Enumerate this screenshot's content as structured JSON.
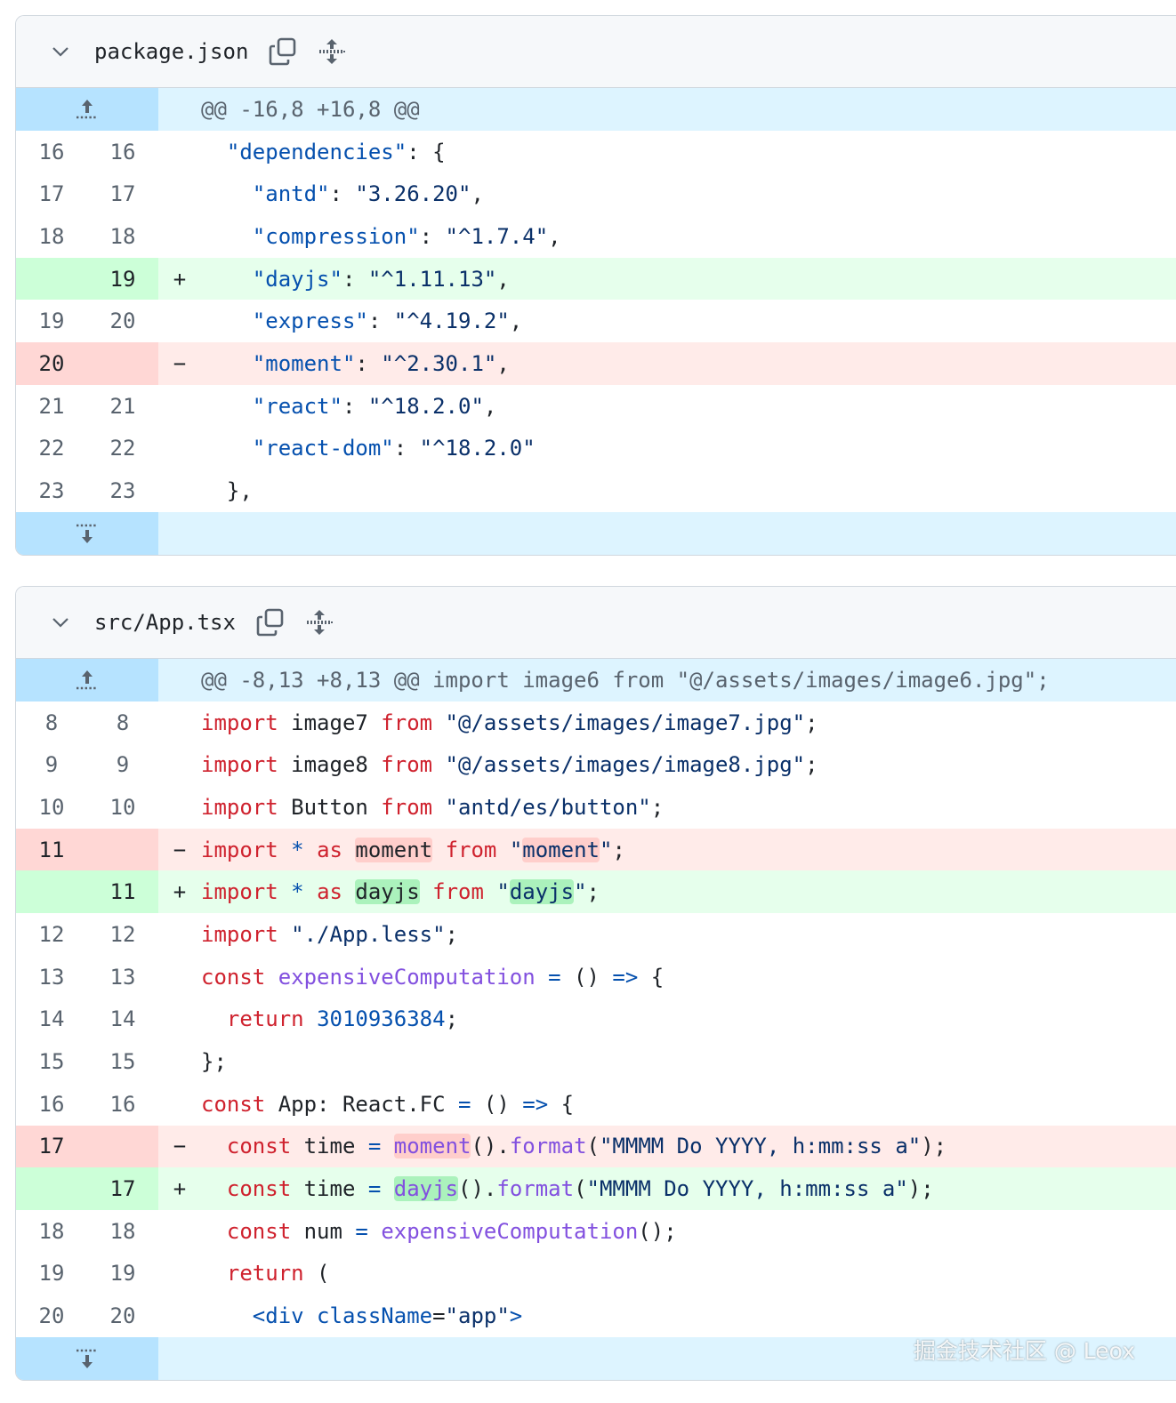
{
  "colors": {
    "added_bg": "#e6ffec",
    "deleted_bg": "#ffebe9",
    "hunk_bg": "#ddf4ff",
    "keyword": "#cf222e",
    "string": "#0a3069",
    "function": "#8250df",
    "constant": "#0550ae"
  },
  "files": [
    {
      "name": "package.json",
      "icons": [
        "chevron-down-icon",
        "copy-icon",
        "expand-all-icon"
      ],
      "hunk": "@@ -16,8 +16,8 @@",
      "lines": [
        {
          "o": "16",
          "n": "16",
          "t": "ctx",
          "m": "",
          "tk": [
            [
              "p",
              "  "
            ],
            [
              "c",
              "\"dependencies\""
            ],
            [
              "p",
              ": {"
            ]
          ]
        },
        {
          "o": "17",
          "n": "17",
          "t": "ctx",
          "m": "",
          "tk": [
            [
              "p",
              "    "
            ],
            [
              "c",
              "\"antd\""
            ],
            [
              "p",
              ": "
            ],
            [
              "s",
              "\"3.26.20\""
            ],
            [
              "p",
              ","
            ]
          ]
        },
        {
          "o": "18",
          "n": "18",
          "t": "ctx",
          "m": "",
          "tk": [
            [
              "p",
              "    "
            ],
            [
              "c",
              "\"compression\""
            ],
            [
              "p",
              ": "
            ],
            [
              "s",
              "\"^1.7.4\""
            ],
            [
              "p",
              ","
            ]
          ]
        },
        {
          "o": "",
          "n": "19",
          "t": "add",
          "m": "+",
          "tk": [
            [
              "p",
              "    "
            ],
            [
              "c",
              "\"dayjs\""
            ],
            [
              "p",
              ": "
            ],
            [
              "s",
              "\"^1.11.13\""
            ],
            [
              "p",
              ","
            ]
          ]
        },
        {
          "o": "19",
          "n": "20",
          "t": "ctx",
          "m": "",
          "tk": [
            [
              "p",
              "    "
            ],
            [
              "c",
              "\"express\""
            ],
            [
              "p",
              ": "
            ],
            [
              "s",
              "\"^4.19.2\""
            ],
            [
              "p",
              ","
            ]
          ]
        },
        {
          "o": "20",
          "n": "",
          "t": "del",
          "m": "−",
          "tk": [
            [
              "p",
              "    "
            ],
            [
              "c",
              "\"moment\""
            ],
            [
              "p",
              ": "
            ],
            [
              "s",
              "\"^2.30.1\""
            ],
            [
              "p",
              ","
            ]
          ]
        },
        {
          "o": "21",
          "n": "21",
          "t": "ctx",
          "m": "",
          "tk": [
            [
              "p",
              "    "
            ],
            [
              "c",
              "\"react\""
            ],
            [
              "p",
              ": "
            ],
            [
              "s",
              "\"^18.2.0\""
            ],
            [
              "p",
              ","
            ]
          ]
        },
        {
          "o": "22",
          "n": "22",
          "t": "ctx",
          "m": "",
          "tk": [
            [
              "p",
              "    "
            ],
            [
              "c",
              "\"react-dom\""
            ],
            [
              "p",
              ": "
            ],
            [
              "s",
              "\"^18.2.0\""
            ]
          ]
        },
        {
          "o": "23",
          "n": "23",
          "t": "ctx",
          "m": "",
          "tk": [
            [
              "p",
              "  },"
            ]
          ]
        }
      ]
    },
    {
      "name": "src/App.tsx",
      "icons": [
        "chevron-down-icon",
        "copy-icon",
        "expand-all-icon"
      ],
      "hunk": "@@ -8,13 +8,13 @@ import image6 from \"@/assets/images/image6.jpg\";",
      "lines": [
        {
          "o": "8",
          "n": "8",
          "t": "ctx",
          "m": "",
          "tk": [
            [
              "k",
              "import"
            ],
            [
              "p",
              " image7 "
            ],
            [
              "k",
              "from"
            ],
            [
              "p",
              " "
            ],
            [
              "s",
              "\"@/assets/images/image7.jpg\""
            ],
            [
              "p",
              ";"
            ]
          ]
        },
        {
          "o": "9",
          "n": "9",
          "t": "ctx",
          "m": "",
          "tk": [
            [
              "k",
              "import"
            ],
            [
              "p",
              " image8 "
            ],
            [
              "k",
              "from"
            ],
            [
              "p",
              " "
            ],
            [
              "s",
              "\"@/assets/images/image8.jpg\""
            ],
            [
              "p",
              ";"
            ]
          ]
        },
        {
          "o": "10",
          "n": "10",
          "t": "ctx",
          "m": "",
          "tk": [
            [
              "k",
              "import"
            ],
            [
              "p",
              " Button "
            ],
            [
              "k",
              "from"
            ],
            [
              "p",
              " "
            ],
            [
              "s",
              "\"antd/es/button\""
            ],
            [
              "p",
              ";"
            ]
          ]
        },
        {
          "o": "11",
          "n": "",
          "t": "del",
          "m": "−",
          "tk": [
            [
              "k",
              "import"
            ],
            [
              "p",
              " "
            ],
            [
              "c",
              "*"
            ],
            [
              "p",
              " "
            ],
            [
              "k",
              "as"
            ],
            [
              "p",
              " "
            ],
            [
              "p",
              "moment",
              "hl"
            ],
            [
              "p",
              " "
            ],
            [
              "k",
              "from"
            ],
            [
              "p",
              " "
            ],
            [
              "s",
              "\""
            ],
            [
              "s",
              "moment",
              "hl"
            ],
            [
              "s",
              "\""
            ],
            [
              "p",
              ";"
            ]
          ]
        },
        {
          "o": "",
          "n": "11",
          "t": "add",
          "m": "+",
          "tk": [
            [
              "k",
              "import"
            ],
            [
              "p",
              " "
            ],
            [
              "c",
              "*"
            ],
            [
              "p",
              " "
            ],
            [
              "k",
              "as"
            ],
            [
              "p",
              " "
            ],
            [
              "p",
              "dayjs",
              "hl"
            ],
            [
              "p",
              " "
            ],
            [
              "k",
              "from"
            ],
            [
              "p",
              " "
            ],
            [
              "s",
              "\""
            ],
            [
              "s",
              "dayjs",
              "hl"
            ],
            [
              "s",
              "\""
            ],
            [
              "p",
              ";"
            ]
          ]
        },
        {
          "o": "12",
          "n": "12",
          "t": "ctx",
          "m": "",
          "tk": [
            [
              "k",
              "import"
            ],
            [
              "p",
              " "
            ],
            [
              "s",
              "\"./App.less\""
            ],
            [
              "p",
              ";"
            ]
          ]
        },
        {
          "o": "13",
          "n": "13",
          "t": "ctx",
          "m": "",
          "tk": [
            [
              "k",
              "const"
            ],
            [
              "p",
              " "
            ],
            [
              "f",
              "expensiveComputation"
            ],
            [
              "p",
              " "
            ],
            [
              "c",
              "="
            ],
            [
              "p",
              " () "
            ],
            [
              "c",
              "=>"
            ],
            [
              "p",
              " {"
            ]
          ]
        },
        {
          "o": "14",
          "n": "14",
          "t": "ctx",
          "m": "",
          "tk": [
            [
              "p",
              "  "
            ],
            [
              "k",
              "return"
            ],
            [
              "p",
              " "
            ],
            [
              "c",
              "3010936384"
            ],
            [
              "p",
              ";"
            ]
          ]
        },
        {
          "o": "15",
          "n": "15",
          "t": "ctx",
          "m": "",
          "tk": [
            [
              "p",
              "};"
            ]
          ]
        },
        {
          "o": "16",
          "n": "16",
          "t": "ctx",
          "m": "",
          "tk": [
            [
              "k",
              "const"
            ],
            [
              "p",
              " App: React.FC "
            ],
            [
              "c",
              "="
            ],
            [
              "p",
              " () "
            ],
            [
              "c",
              "=>"
            ],
            [
              "p",
              " {"
            ]
          ]
        },
        {
          "o": "17",
          "n": "",
          "t": "del",
          "m": "−",
          "tk": [
            [
              "p",
              "  "
            ],
            [
              "k",
              "const"
            ],
            [
              "p",
              " time "
            ],
            [
              "c",
              "="
            ],
            [
              "p",
              " "
            ],
            [
              "f",
              "moment",
              "hl"
            ],
            [
              "p",
              "()."
            ],
            [
              "f",
              "format"
            ],
            [
              "p",
              "("
            ],
            [
              "s",
              "\"MMMM Do YYYY, h:mm:ss a\""
            ],
            [
              "p",
              ");"
            ]
          ]
        },
        {
          "o": "",
          "n": "17",
          "t": "add",
          "m": "+",
          "tk": [
            [
              "p",
              "  "
            ],
            [
              "k",
              "const"
            ],
            [
              "p",
              " time "
            ],
            [
              "c",
              "="
            ],
            [
              "p",
              " "
            ],
            [
              "f",
              "dayjs",
              "hl"
            ],
            [
              "p",
              "()."
            ],
            [
              "f",
              "format"
            ],
            [
              "p",
              "("
            ],
            [
              "s",
              "\"MMMM Do YYYY, h:mm:ss a\""
            ],
            [
              "p",
              ");"
            ]
          ]
        },
        {
          "o": "18",
          "n": "18",
          "t": "ctx",
          "m": "",
          "tk": [
            [
              "p",
              "  "
            ],
            [
              "k",
              "const"
            ],
            [
              "p",
              " num "
            ],
            [
              "c",
              "="
            ],
            [
              "p",
              " "
            ],
            [
              "f",
              "expensiveComputation"
            ],
            [
              "p",
              "();"
            ]
          ]
        },
        {
          "o": "19",
          "n": "19",
          "t": "ctx",
          "m": "",
          "tk": [
            [
              "p",
              "  "
            ],
            [
              "k",
              "return"
            ],
            [
              "p",
              " ("
            ]
          ]
        },
        {
          "o": "20",
          "n": "20",
          "t": "ctx",
          "m": "",
          "tk": [
            [
              "p",
              "    "
            ],
            [
              "c",
              "<div"
            ],
            [
              "p",
              " "
            ],
            [
              "c",
              "className"
            ],
            [
              "p",
              "="
            ],
            [
              "s",
              "\"app\""
            ],
            [
              "c",
              ">"
            ]
          ]
        }
      ]
    }
  ],
  "watermark": "掘金技术社区 @ Leox"
}
